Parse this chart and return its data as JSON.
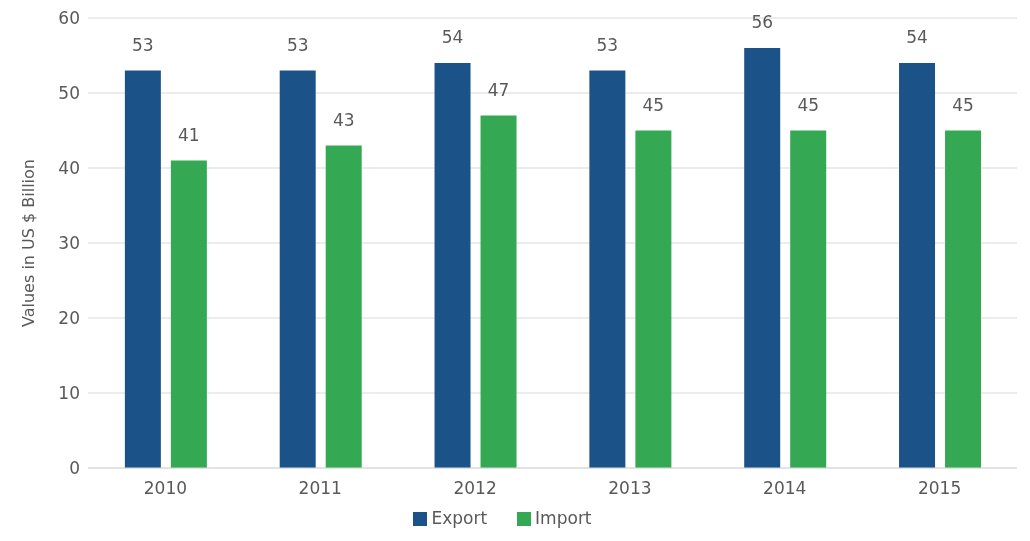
{
  "chart_data": {
    "type": "bar",
    "ylabel": "Values in US $ Billion",
    "categories": [
      "2010",
      "2011",
      "2012",
      "2013",
      "2014",
      "2015"
    ],
    "series": [
      {
        "name": "Export",
        "color": "#1b5288",
        "values": [
          53,
          53,
          54,
          53,
          56,
          54
        ]
      },
      {
        "name": "Import",
        "color": "#34a853",
        "values": [
          41,
          43,
          47,
          45,
          45,
          45
        ]
      }
    ],
    "ylim": [
      0,
      60
    ],
    "yticks": [
      0,
      10,
      20,
      30,
      40,
      50,
      60
    ],
    "grid": "y",
    "legend": "bottom",
    "data_labels": true
  }
}
